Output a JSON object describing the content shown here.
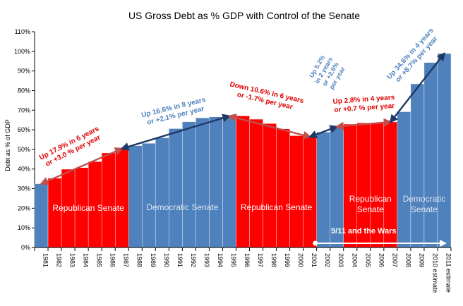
{
  "chart_data": {
    "type": "bar",
    "title": "US Gross Debt as  % GDP with Control of the Senate",
    "xlabel": "",
    "ylabel": "Debt as % of GDP",
    "ylim": [
      0,
      110
    ],
    "yticks": [
      0,
      10,
      20,
      30,
      40,
      50,
      60,
      70,
      80,
      90,
      100,
      110
    ],
    "ytick_format": "{v}%",
    "grid": false,
    "legend": "none",
    "categories": [
      "1981",
      "1982",
      "1983",
      "1984",
      "1985",
      "1986",
      "1987",
      "1988",
      "1989",
      "1990",
      "1991",
      "1992",
      "1993",
      "1994",
      "1995",
      "1996",
      "1997",
      "1998",
      "1999",
      "2000",
      "2001",
      "2002",
      "2003",
      "2004",
      "2005",
      "2006",
      "2007",
      "2008",
      "2009",
      "2010 estimate",
      "2011 estimate"
    ],
    "values": [
      32.5,
      35.3,
      39.9,
      40.7,
      43.8,
      48.2,
      50.4,
      51.9,
      53.1,
      55.9,
      60.6,
      64.1,
      66.1,
      66.6,
      67.0,
      67.1,
      65.4,
      63.2,
      60.5,
      57.0,
      56.4,
      58.8,
      61.6,
      62.9,
      63.5,
      63.5,
      64.0,
      69.2,
      83.4,
      94.3,
      98.9
    ],
    "control": [
      "D",
      "R",
      "R",
      "R",
      "R",
      "R",
      "R",
      "D",
      "D",
      "D",
      "D",
      "D",
      "D",
      "D",
      "D",
      "R",
      "R",
      "R",
      "R",
      "R",
      "R",
      "D",
      "D",
      "R",
      "R",
      "R",
      "R",
      "D",
      "D",
      "D",
      "D"
    ],
    "colors": {
      "R": "#ff0000",
      "D": "#4f81bd",
      "arrow_up": "#1f3864",
      "arrow_down": "#c0504d",
      "annotation_red": "#e00000",
      "annotation_blue": "#4f81bd",
      "wars": "#ffffff"
    },
    "periods": [
      {
        "label": "Republican Senate",
        "party": "R",
        "start": "1982",
        "end": "1987"
      },
      {
        "label": "Democratic Senate",
        "party": "D",
        "start": "1988",
        "end": "1995"
      },
      {
        "label": "Republican Senate",
        "party": "R",
        "start": "1996",
        "end": "2001"
      },
      {
        "label": "Republican\nSenate",
        "party": "R",
        "start": "2004",
        "end": "2007"
      },
      {
        "label": "Democratic\nSenate",
        "party": "D",
        "start": "2008",
        "end": "2011 estimate"
      }
    ],
    "trends": [
      {
        "lines": [
          "Up 17.9% in 6 years",
          "or +3.0 % per year"
        ],
        "color": "red",
        "from": "1981",
        "to": "1987"
      },
      {
        "lines": [
          "Up 16.6% in 8 years",
          "or +2.1% per year"
        ],
        "color": "blue",
        "from": "1987",
        "to": "1995"
      },
      {
        "lines": [
          "Down  10.6% in 6 years",
          "or -1.7% per year"
        ],
        "color": "red",
        "from": "1995",
        "to": "2001"
      },
      {
        "lines": [
          "Up  5.2%",
          "in 2 years",
          "or +2.6%",
          "per year"
        ],
        "color": "blue",
        "from": "2001",
        "to": "2003"
      },
      {
        "lines": [
          "Up 2.8% in 4 years",
          "or +0.7 % per year"
        ],
        "color": "red",
        "from": "2003",
        "to": "2007"
      },
      {
        "lines": [
          "Up 34.6% in 4 years",
          "or +8.7% per year"
        ],
        "color": "blue",
        "from": "2007",
        "to": "2011 estimate"
      }
    ],
    "wars": {
      "label": "9/11 and the Wars",
      "start": "2002",
      "end": "2011 estimate"
    }
  }
}
